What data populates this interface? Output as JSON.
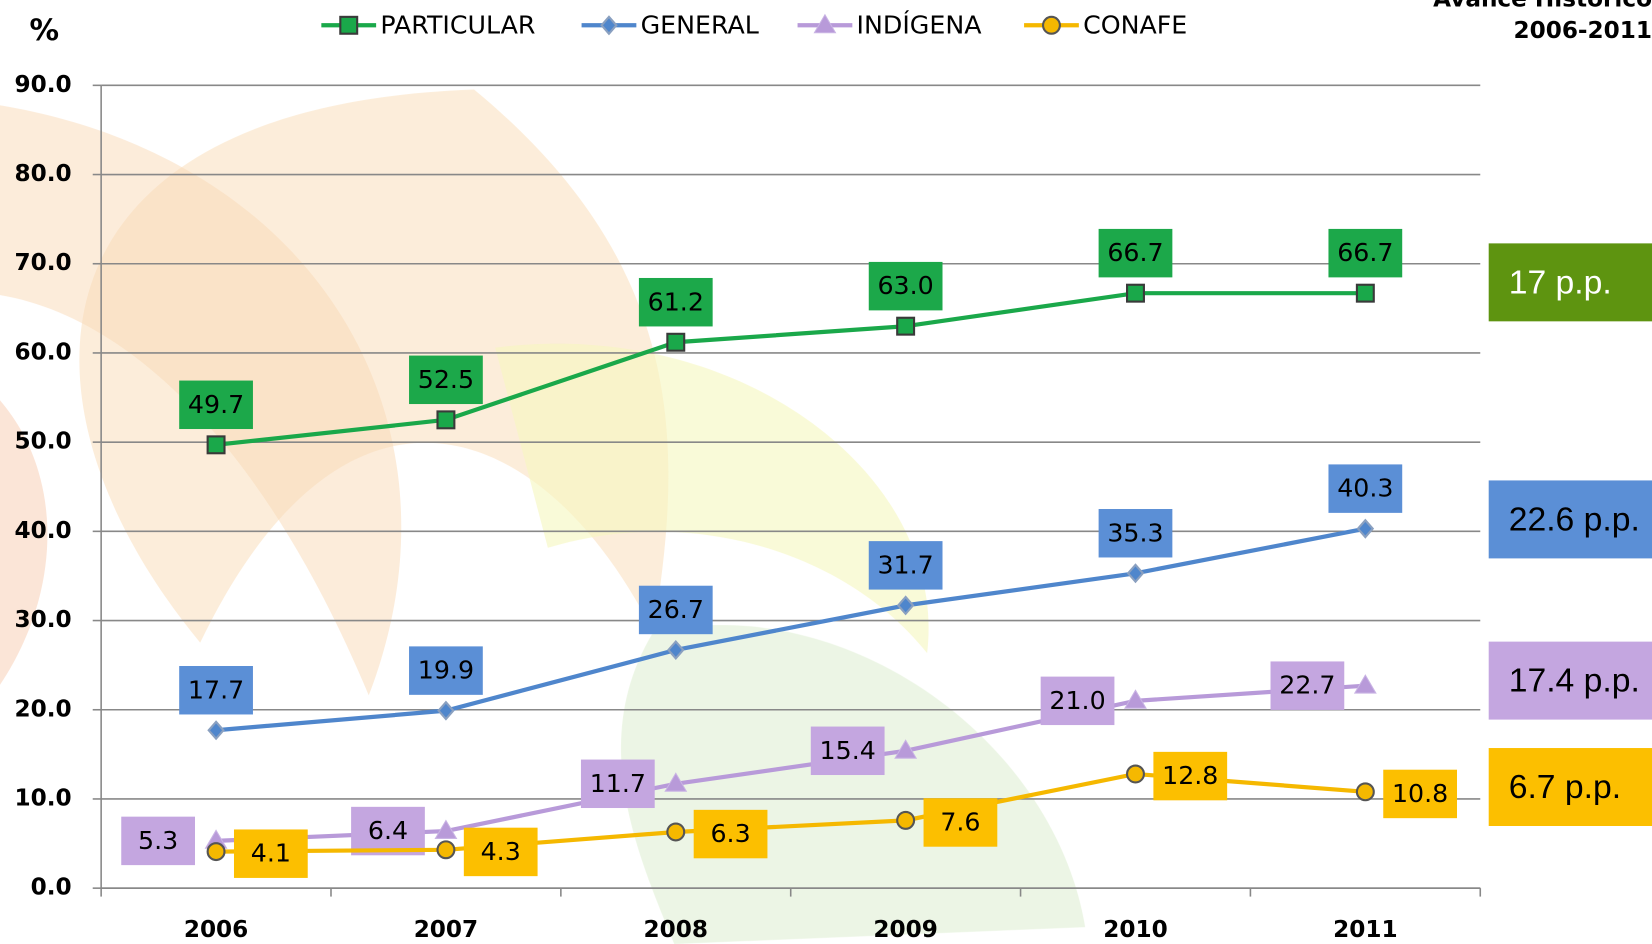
{
  "chart_data": {
    "type": "line",
    "title": "Avance Histórico",
    "subtitle": "2006-2011",
    "ylabel": "%",
    "categories": [
      "2006",
      "2007",
      "2008",
      "2009",
      "2010",
      "2011"
    ],
    "ylim": [
      0,
      90
    ],
    "yticks": [
      {
        "value": 0,
        "label": "0.0"
      },
      {
        "value": 10,
        "label": "10.0"
      },
      {
        "value": 20,
        "label": "20.0"
      },
      {
        "value": 30,
        "label": "30.0"
      },
      {
        "value": 40,
        "label": "40.0"
      },
      {
        "value": 50,
        "label": "50.0"
      },
      {
        "value": 60,
        "label": "60.0"
      },
      {
        "value": 70,
        "label": "70.0"
      },
      {
        "value": 80,
        "label": "80.0"
      },
      {
        "value": 90,
        "label": "90.0"
      }
    ],
    "grid": true,
    "legend": "top",
    "series": [
      {
        "name": "PARTICULAR",
        "color": "#1aa84a",
        "marker": "square",
        "values": [
          49.7,
          52.5,
          61.2,
          63,
          66.7,
          66.7
        ],
        "value_labels": [
          "49.7",
          "52.5",
          "61.2",
          "63.0",
          "66.7",
          "66.7"
        ]
      },
      {
        "name": "GENERAL",
        "color": "#4f86cc",
        "marker": "diamond",
        "values": [
          17.7,
          19.9,
          26.7,
          31.7,
          35.3,
          40.3
        ],
        "value_labels": [
          "17.7",
          "19.9",
          "26.7",
          "31.7",
          "35.3",
          "40.3"
        ]
      },
      {
        "name": "INDÍGENA",
        "color": "#b89ad9",
        "marker": "triangle",
        "values": [
          5.3,
          6.4,
          11.7,
          15.4,
          21,
          22.7
        ],
        "value_labels": [
          "5.3",
          "6.4",
          "11.7",
          "15.4",
          "21.0",
          "22.7"
        ]
      },
      {
        "name": "CONAFE",
        "color": "#f5b800",
        "marker": "circle",
        "values": [
          4.1,
          4.3,
          6.3,
          7.6,
          12.8,
          10.8
        ],
        "value_labels": [
          "4.1",
          "4.3",
          "6.3",
          "7.6",
          "12.8",
          "10.8"
        ]
      }
    ],
    "annotations": [
      {
        "text": "17 p.p.",
        "color": "#5e9410"
      },
      {
        "text": "22.6 p.p.",
        "color": "#5b8fd6"
      },
      {
        "text": "17.4 p.p.",
        "color": "#c4a6e0"
      },
      {
        "text": "6.7 p.p.",
        "color": "#fcbf00"
      }
    ]
  }
}
